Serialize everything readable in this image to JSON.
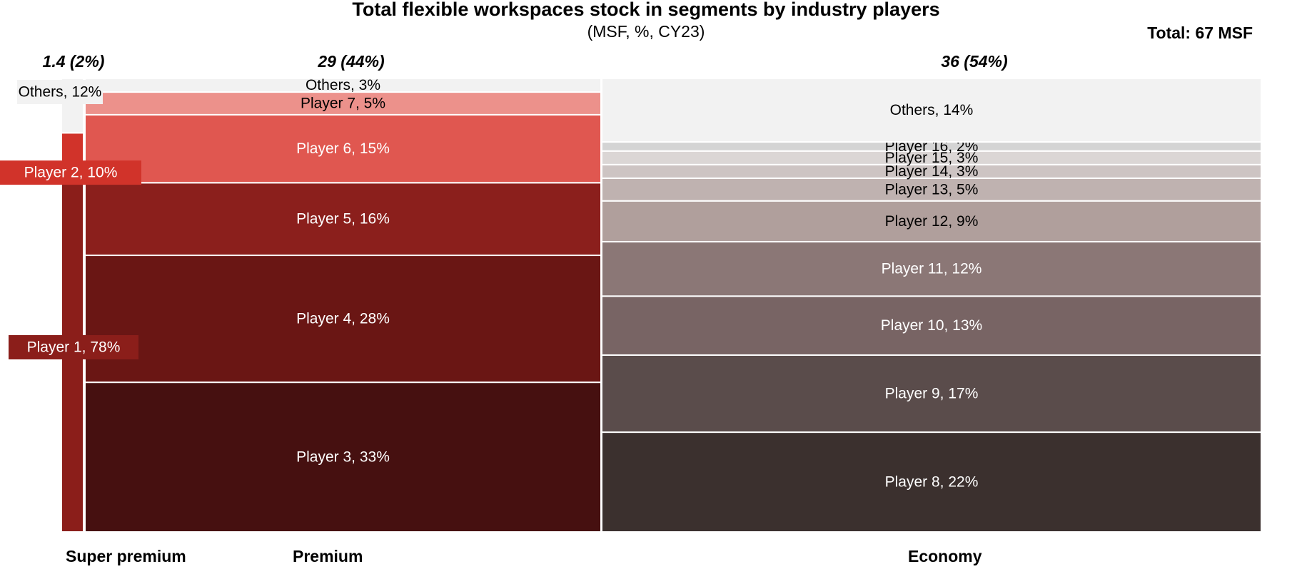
{
  "chart_data": {
    "type": "marimekko",
    "title": "Total flexible workspaces stock in segments by industry players",
    "subtitle": "(MSF, %, CY23)",
    "total_label": "Total: 67 MSF",
    "columns": [
      {
        "category": "Super premium",
        "header": "1.4 (2%)",
        "segments": [
          {
            "name": "Player 1",
            "value": 78,
            "label": "Player 1, 78%",
            "color": "#8b1e1a",
            "text_color": "#ffffff"
          },
          {
            "name": "Player 2",
            "value": 10,
            "label": "Player 2, 10%",
            "color": "#d1332a",
            "text_color": "#ffffff"
          },
          {
            "name": "Others",
            "value": 12,
            "label": "Others, 12%",
            "color": "#f2f2f2",
            "text_color": "#000000"
          }
        ]
      },
      {
        "category": "Premium",
        "header": "29 (44%)",
        "segments": [
          {
            "name": "Player 3",
            "value": 33,
            "label": "Player 3, 33%",
            "color": "#461010",
            "text_color": "#ffffff"
          },
          {
            "name": "Player 4",
            "value": 28,
            "label": "Player 4, 28%",
            "color": "#6a1614",
            "text_color": "#ffffff"
          },
          {
            "name": "Player 5",
            "value": 16,
            "label": "Player 5, 16%",
            "color": "#8b1f1c",
            "text_color": "#ffffff"
          },
          {
            "name": "Player 6",
            "value": 15,
            "label": "Player 6, 15%",
            "color": "#e05750",
            "text_color": "#ffffff"
          },
          {
            "name": "Player 7",
            "value": 5,
            "label": "Player 7, 5%",
            "color": "#ec918b",
            "text_color": "#000000"
          },
          {
            "name": "Others",
            "value": 3,
            "label": "Others, 3%",
            "color": "#f2f2f2",
            "text_color": "#000000"
          }
        ]
      },
      {
        "category": "Economy",
        "header": "36 (54%)",
        "segments": [
          {
            "name": "Player 8",
            "value": 22,
            "label": "Player 8, 22%",
            "color": "#3b302e",
            "text_color": "#ffffff"
          },
          {
            "name": "Player 9",
            "value": 17,
            "label": "Player 9, 17%",
            "color": "#5a4c4b",
            "text_color": "#ffffff"
          },
          {
            "name": "Player 10",
            "value": 13,
            "label": "Player 10, 13%",
            "color": "#786464",
            "text_color": "#ffffff"
          },
          {
            "name": "Player 11",
            "value": 12,
            "label": "Player 11, 12%",
            "color": "#8b7776",
            "text_color": "#ffffff"
          },
          {
            "name": "Player 12",
            "value": 9,
            "label": "Player 12, 9%",
            "color": "#b09f9c",
            "text_color": "#000000"
          },
          {
            "name": "Player 13",
            "value": 5,
            "label": "Player 13, 5%",
            "color": "#bfb2b0",
            "text_color": "#000000"
          },
          {
            "name": "Player 14",
            "value": 3,
            "label": "Player 14, 3%",
            "color": "#cdc4c3",
            "text_color": "#000000"
          },
          {
            "name": "Player 15",
            "value": 3,
            "label": "Player 15, 3%",
            "color": "#dbd6d5",
            "text_color": "#000000"
          },
          {
            "name": "Player 16",
            "value": 2,
            "label": "Player 16, 2%",
            "color": "#d4d4d4",
            "text_color": "#000000"
          },
          {
            "name": "Others",
            "value": 14,
            "label": "Others, 14%",
            "color": "#f2f2f2",
            "text_color": "#000000"
          }
        ]
      }
    ]
  }
}
